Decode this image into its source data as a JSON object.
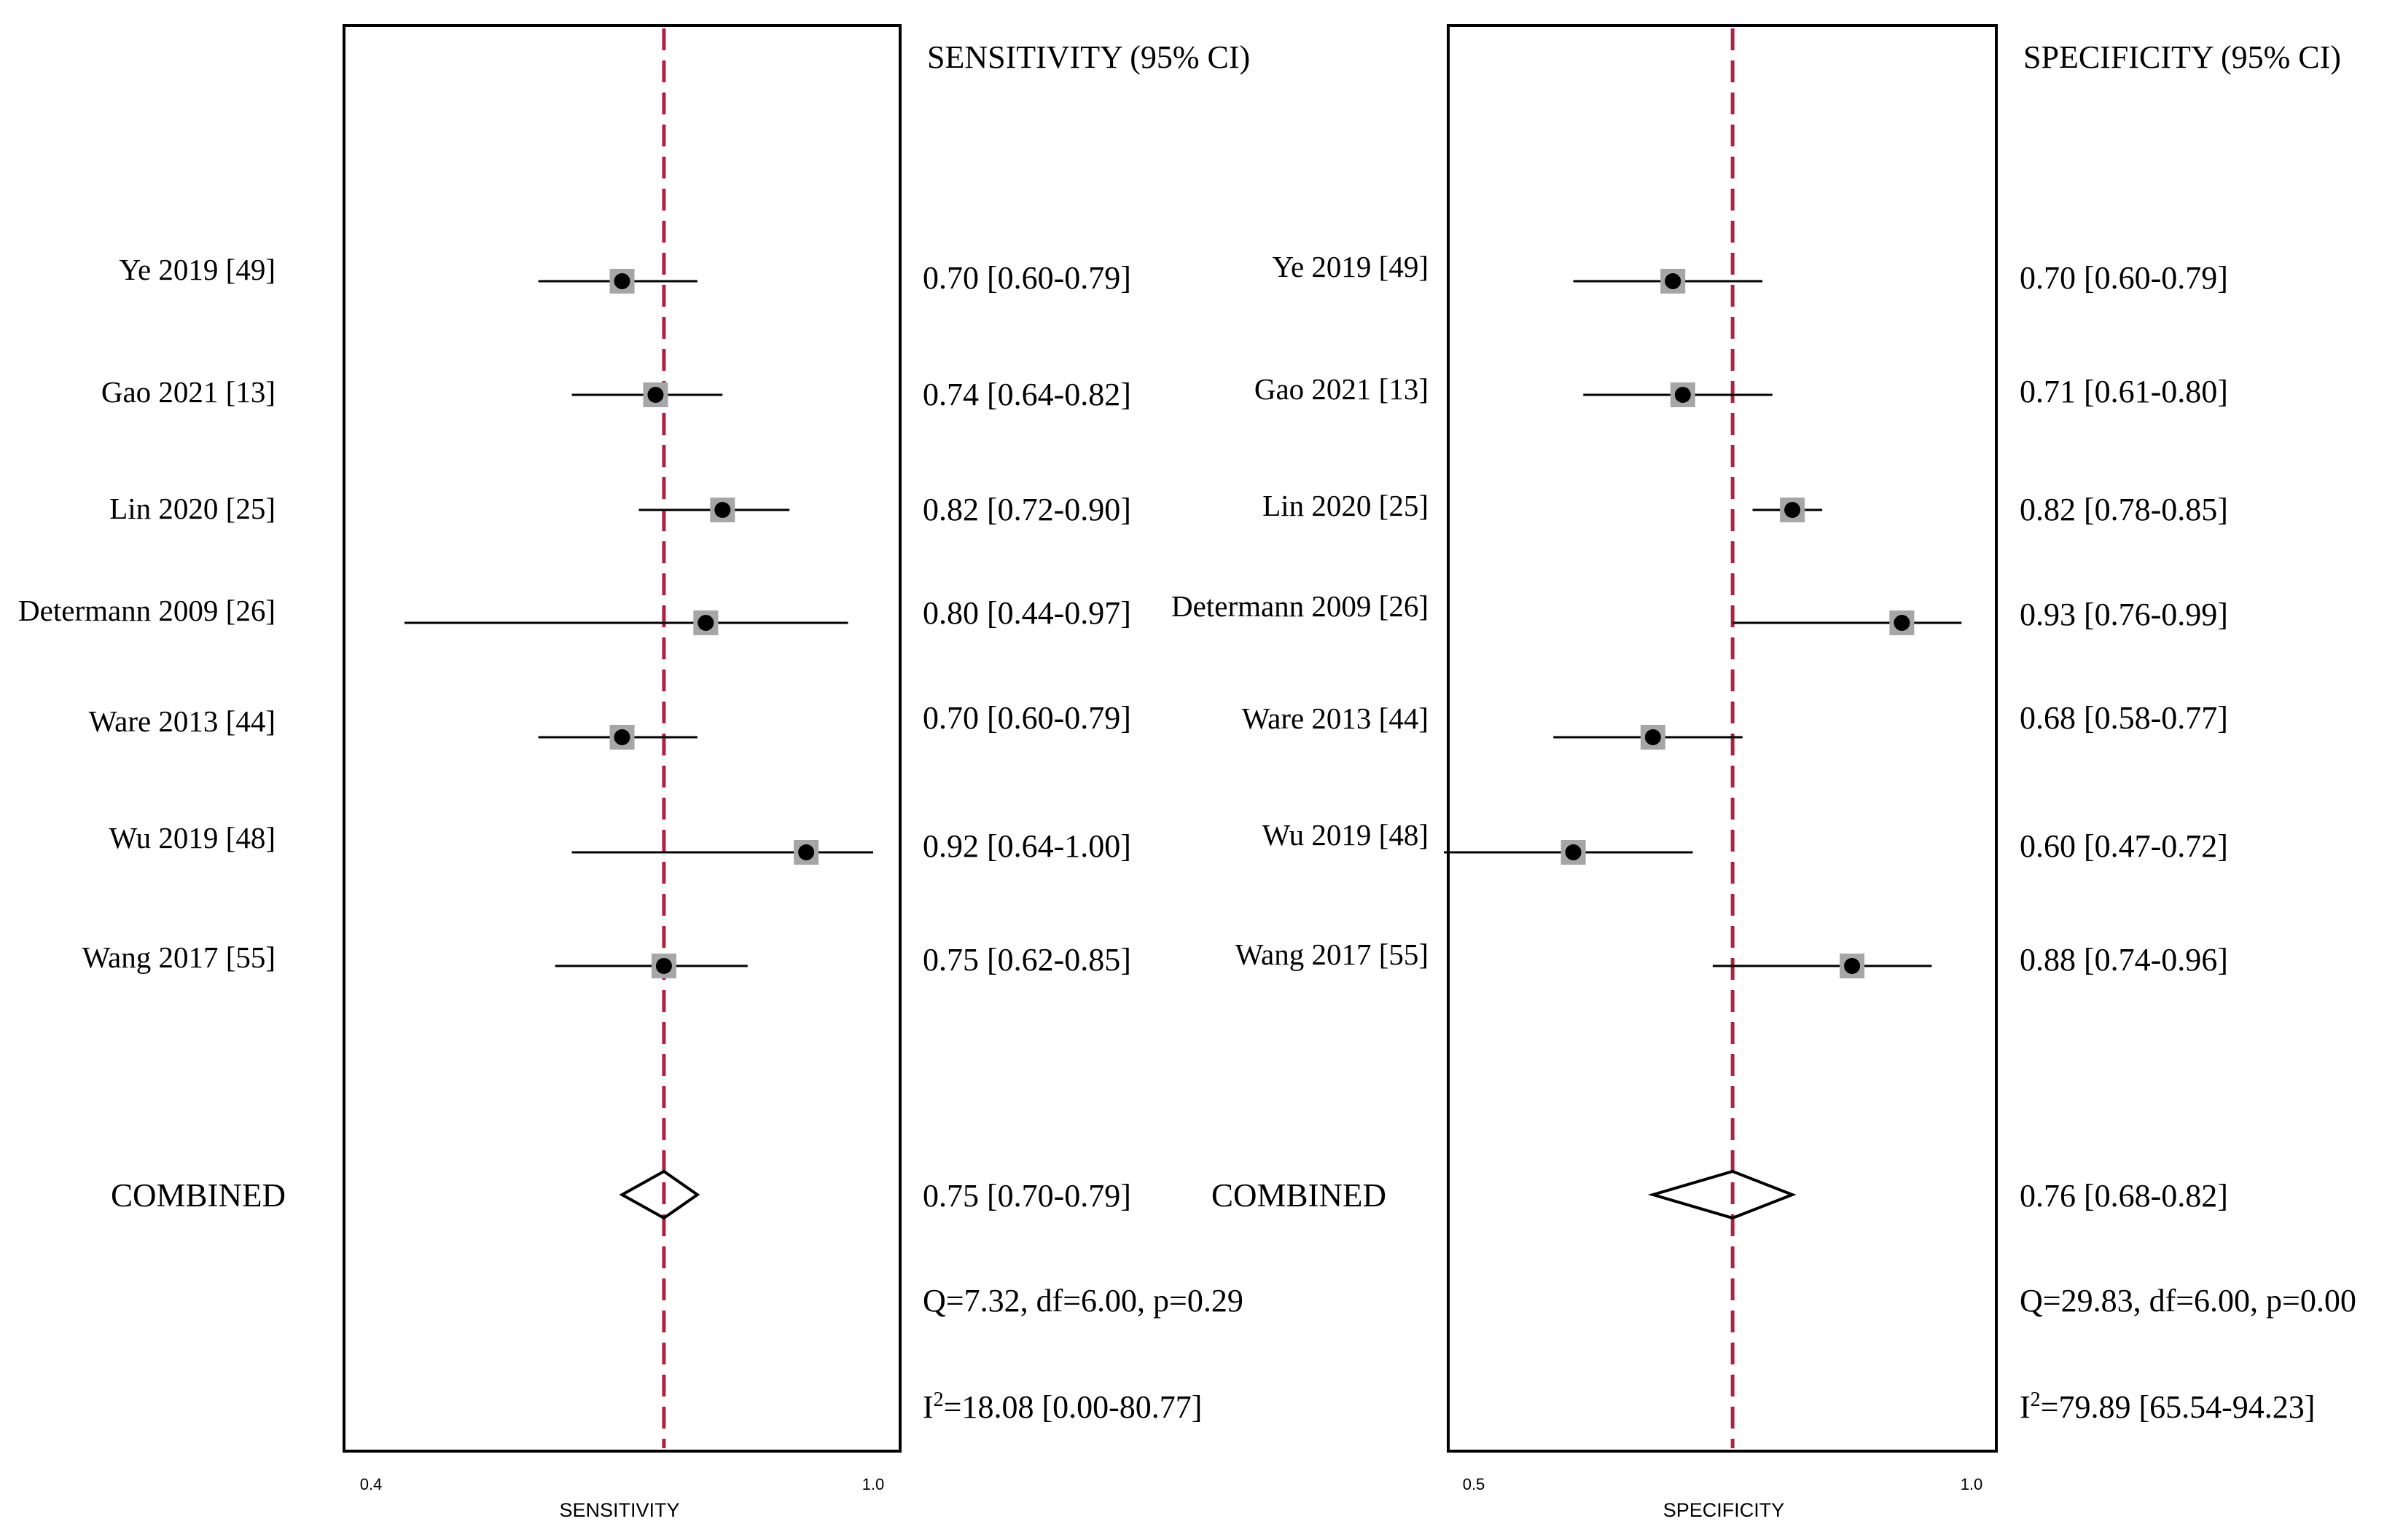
{
  "chart_data": [
    {
      "type": "forest",
      "header": "SENSITIVITY (95% CI)",
      "xlabel": "SENSITIVITY",
      "xlim": [
        0.4,
        1.0
      ],
      "xticks": [
        "0.4",
        "1.0"
      ],
      "pooled_line": 0.75,
      "studies": [
        {
          "label": "Ye 2019 [49]",
          "estimate": 0.7,
          "lower": 0.6,
          "upper": 0.79,
          "text": "0.70 [0.60-0.79]"
        },
        {
          "label": "Gao 2021 [13]",
          "estimate": 0.74,
          "lower": 0.64,
          "upper": 0.82,
          "text": "0.74 [0.64-0.82]"
        },
        {
          "label": "Lin 2020 [25]",
          "estimate": 0.82,
          "lower": 0.72,
          "upper": 0.9,
          "text": "0.82 [0.72-0.90]"
        },
        {
          "label": "Determann 2009 [26]",
          "estimate": 0.8,
          "lower": 0.44,
          "upper": 0.97,
          "text": "0.80 [0.44-0.97]"
        },
        {
          "label": "Ware 2013 [44]",
          "estimate": 0.7,
          "lower": 0.6,
          "upper": 0.79,
          "text": "0.70 [0.60-0.79]"
        },
        {
          "label": "Wu 2019 [48]",
          "estimate": 0.92,
          "lower": 0.64,
          "upper": 1.0,
          "text": "0.92 [0.64-1.00]"
        },
        {
          "label": "Wang 2017 [55]",
          "estimate": 0.75,
          "lower": 0.62,
          "upper": 0.85,
          "text": "0.75 [0.62-0.85]"
        }
      ],
      "combined": {
        "label": "COMBINED",
        "estimate": 0.75,
        "lower": 0.7,
        "upper": 0.79,
        "text": "0.75 [0.70-0.79]"
      },
      "heterogeneity": {
        "q_text": "Q=7.32, df=6.00, p=0.29",
        "i2_prefix": "I",
        "i2_sup": "2",
        "i2_rest": "=18.08 [0.00-80.77]"
      }
    },
    {
      "type": "forest",
      "header": "SPECIFICITY (95% CI)",
      "xlabel": "SPECIFICITY",
      "xlim": [
        0.5,
        1.0
      ],
      "xticks": [
        "0.5",
        "1.0"
      ],
      "pooled_line": 0.76,
      "studies": [
        {
          "label": "Ye 2019 [49]",
          "estimate": 0.7,
          "lower": 0.6,
          "upper": 0.79,
          "text": "0.70 [0.60-0.79]"
        },
        {
          "label": "Gao 2021 [13]",
          "estimate": 0.71,
          "lower": 0.61,
          "upper": 0.8,
          "text": "0.71 [0.61-0.80]"
        },
        {
          "label": "Lin 2020 [25]",
          "estimate": 0.82,
          "lower": 0.78,
          "upper": 0.85,
          "text": "0.82 [0.78-0.85]"
        },
        {
          "label": "Determann 2009 [26]",
          "estimate": 0.93,
          "lower": 0.76,
          "upper": 0.99,
          "text": "0.93 [0.76-0.99]"
        },
        {
          "label": "Ware 2013 [44]",
          "estimate": 0.68,
          "lower": 0.58,
          "upper": 0.77,
          "text": "0.68 [0.58-0.77]"
        },
        {
          "label": "Wu 2019 [48]",
          "estimate": 0.6,
          "lower": 0.47,
          "upper": 0.72,
          "text": "0.60 [0.47-0.72]"
        },
        {
          "label": "Wang 2017 [55]",
          "estimate": 0.88,
          "lower": 0.74,
          "upper": 0.96,
          "text": "0.88 [0.74-0.96]"
        }
      ],
      "combined": {
        "label": "COMBINED",
        "estimate": 0.76,
        "lower": 0.68,
        "upper": 0.82,
        "text": "0.76 [0.68-0.82]"
      },
      "heterogeneity": {
        "q_text": "Q=29.83, df=6.00, p=0.00",
        "i2_prefix": "I",
        "i2_sup": "2",
        "i2_rest": "=79.89 [65.54-94.23]"
      }
    }
  ],
  "colors": {
    "pooled_line": "#b22040",
    "square": "#a6a6a6",
    "point": "#000000",
    "line": "#000000"
  }
}
